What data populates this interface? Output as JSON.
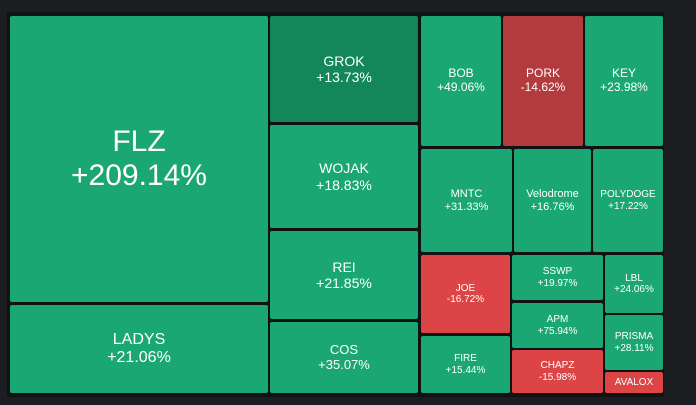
{
  "colors": {
    "background": "#111214",
    "gain": "#1aa774",
    "gain_dim": "#13875a",
    "loss": "#dd4446",
    "loss_dim": "#b33b3d"
  },
  "tiles": [
    {
      "symbol": "FLZ",
      "change": "+209.14%",
      "tone": "gain"
    },
    {
      "symbol": "LADYS",
      "change": "+21.06%",
      "tone": "gain"
    },
    {
      "symbol": "GROK",
      "change": "+13.73%",
      "tone": "gain_dim"
    },
    {
      "symbol": "WOJAK",
      "change": "+18.83%",
      "tone": "gain"
    },
    {
      "symbol": "REI",
      "change": "+21.85%",
      "tone": "gain"
    },
    {
      "symbol": "COS",
      "change": "+35.07%",
      "tone": "gain"
    },
    {
      "symbol": "BOB",
      "change": "+49.06%",
      "tone": "gain"
    },
    {
      "symbol": "PORK",
      "change": "-14.62%",
      "tone": "loss_dim"
    },
    {
      "symbol": "KEY",
      "change": "+23.98%",
      "tone": "gain"
    },
    {
      "symbol": "MNTC",
      "change": "+31.33%",
      "tone": "gain"
    },
    {
      "symbol": "Velodrome",
      "change": "+16.76%",
      "tone": "gain"
    },
    {
      "symbol": "POLYDOGE",
      "change": "+17.22%",
      "tone": "gain"
    },
    {
      "symbol": "JOE",
      "change": "-16.72%",
      "tone": "loss"
    },
    {
      "symbol": "SSWP",
      "change": "+19.97%",
      "tone": "gain"
    },
    {
      "symbol": "LBL",
      "change": "+24.06%",
      "tone": "gain"
    },
    {
      "symbol": "APM",
      "change": "+75.94%",
      "tone": "gain"
    },
    {
      "symbol": "PRISMA",
      "change": "+28.11%",
      "tone": "gain"
    },
    {
      "symbol": "FIRE",
      "change": "+15.44%",
      "tone": "gain"
    },
    {
      "symbol": "CHAPZ",
      "change": "-15.98%",
      "tone": "loss"
    },
    {
      "symbol": "AVALOX",
      "change": "",
      "tone": "loss"
    }
  ]
}
